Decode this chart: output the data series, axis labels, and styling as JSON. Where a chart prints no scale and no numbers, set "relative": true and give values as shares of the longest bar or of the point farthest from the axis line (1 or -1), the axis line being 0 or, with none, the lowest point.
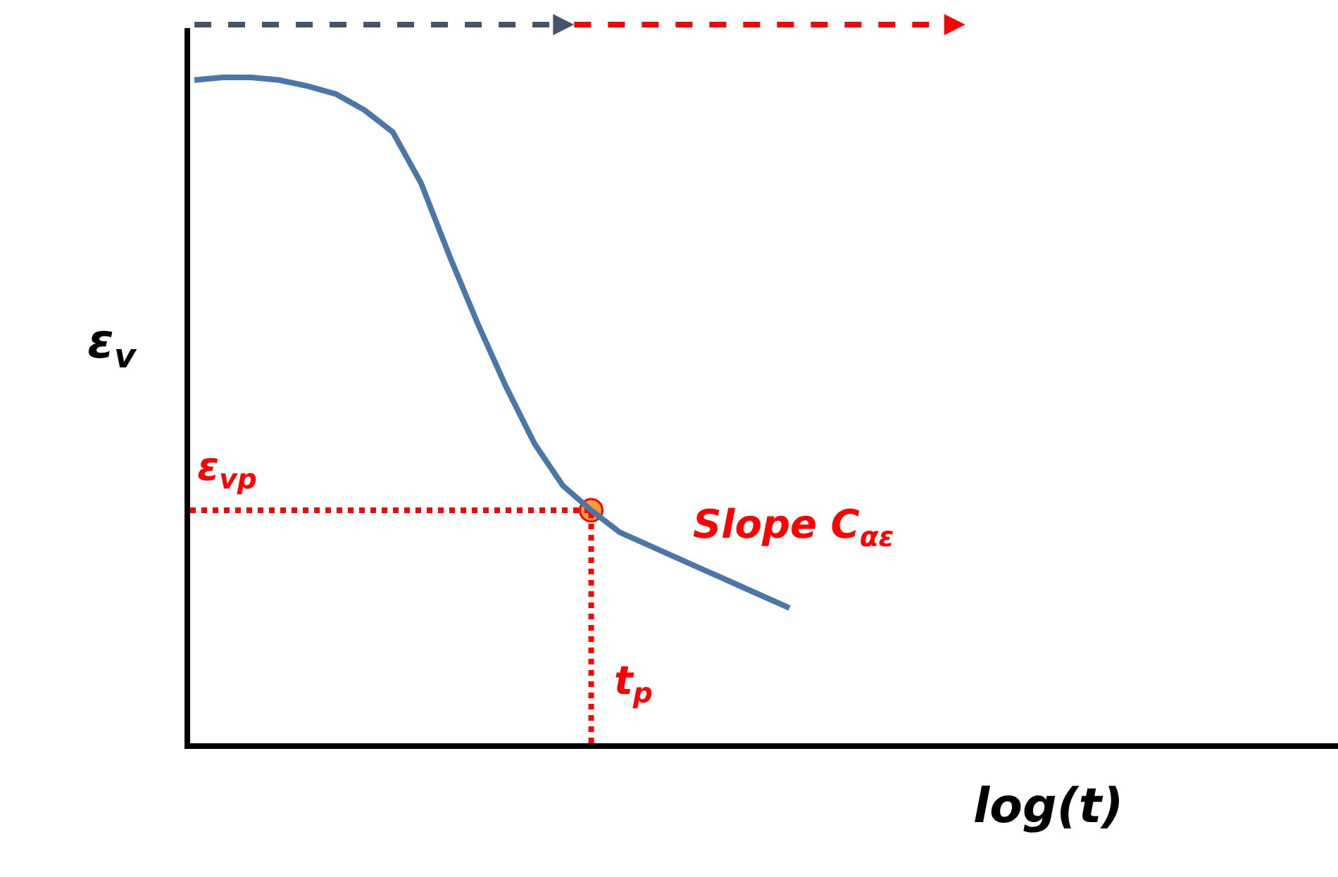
{
  "chart_data": {
    "type": "line",
    "relative": true,
    "xlabel": "log(t)",
    "ylabel": "ε$_{v}$",
    "categories": [
      null,
      null,
      null,
      null,
      null,
      null,
      null,
      null,
      null,
      null,
      null,
      null,
      null,
      null,
      null,
      null,
      null,
      null,
      null,
      null,
      null,
      null
    ],
    "series": [
      {
        "color": "#4a77a8",
        "marker": "none",
        "line_style": "solid",
        "values": [
          0.996,
          1.0,
          1.0,
          0.996,
          0.987,
          0.975,
          0.951,
          0.918,
          0.841,
          0.732,
          0.63,
          0.535,
          0.45,
          0.387,
          0.35,
          0.317,
          0.298,
          0.279,
          0.26,
          0.241,
          0.222,
          0.203
        ]
      }
    ],
    "ref_lines": [
      {
        "axis": "y",
        "value": 0.35,
        "label": "ε$_{vp}$",
        "color": "#ff0000",
        "line_style": "dotted"
      }
    ],
    "annotations": [
      "Slope C$_{αε}$",
      "t$_{p}$"
    ]
  }
}
